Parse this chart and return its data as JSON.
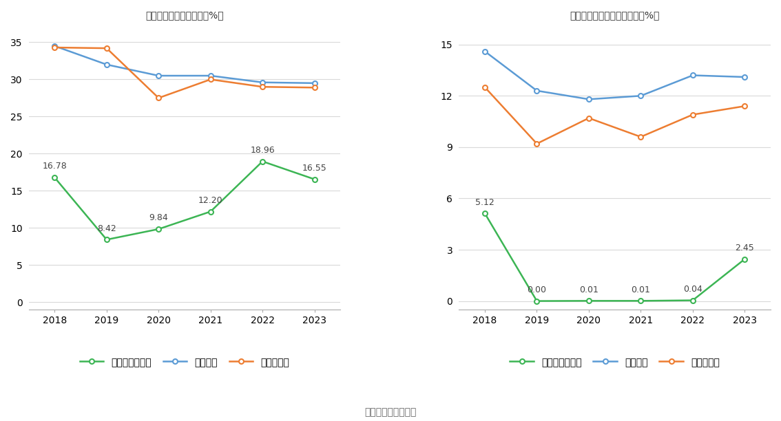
{
  "left_title": "近年来资产负债率情况（%）",
  "right_title": "近年来有息资产负债率情况（%）",
  "years": [
    2018,
    2019,
    2020,
    2021,
    2022,
    2023
  ],
  "left": {
    "company": [
      16.78,
      8.42,
      9.84,
      12.2,
      18.96,
      16.55
    ],
    "industry_mean": [
      34.5,
      32.0,
      30.5,
      30.5,
      29.6,
      29.5
    ],
    "industry_median": [
      34.3,
      34.2,
      27.5,
      30.0,
      29.0,
      28.9
    ],
    "company_label": "公司资产负债率",
    "mean_label": "行业均值",
    "median_label": "行业中位数",
    "yticks": [
      0,
      5,
      10,
      15,
      20,
      25,
      30,
      35
    ],
    "ylim": [
      -1,
      37
    ]
  },
  "right": {
    "company": [
      5.12,
      0.0,
      0.01,
      0.01,
      0.04,
      2.45
    ],
    "industry_mean": [
      14.6,
      12.3,
      11.8,
      12.0,
      13.2,
      13.1
    ],
    "industry_median": [
      12.5,
      9.2,
      10.7,
      9.6,
      10.9,
      11.4
    ],
    "company_label": "有息资产负债率",
    "mean_label": "行业均值",
    "median_label": "行业中位数",
    "yticks": [
      0,
      3,
      6,
      9,
      12,
      15
    ],
    "ylim": [
      -0.5,
      16
    ]
  },
  "colors": {
    "company": "#3cb554",
    "industry_mean": "#5b9bd5",
    "industry_median": "#ed7d31"
  },
  "source_text": "数据来源：恒生聚源",
  "background_color": "#ffffff",
  "grid_color": "#d9d9d9",
  "font_size_title": 13,
  "font_size_label": 10,
  "font_size_tick": 9,
  "font_size_source": 10,
  "font_size_annotation": 9,
  "marker_size": 5,
  "line_width": 1.8
}
